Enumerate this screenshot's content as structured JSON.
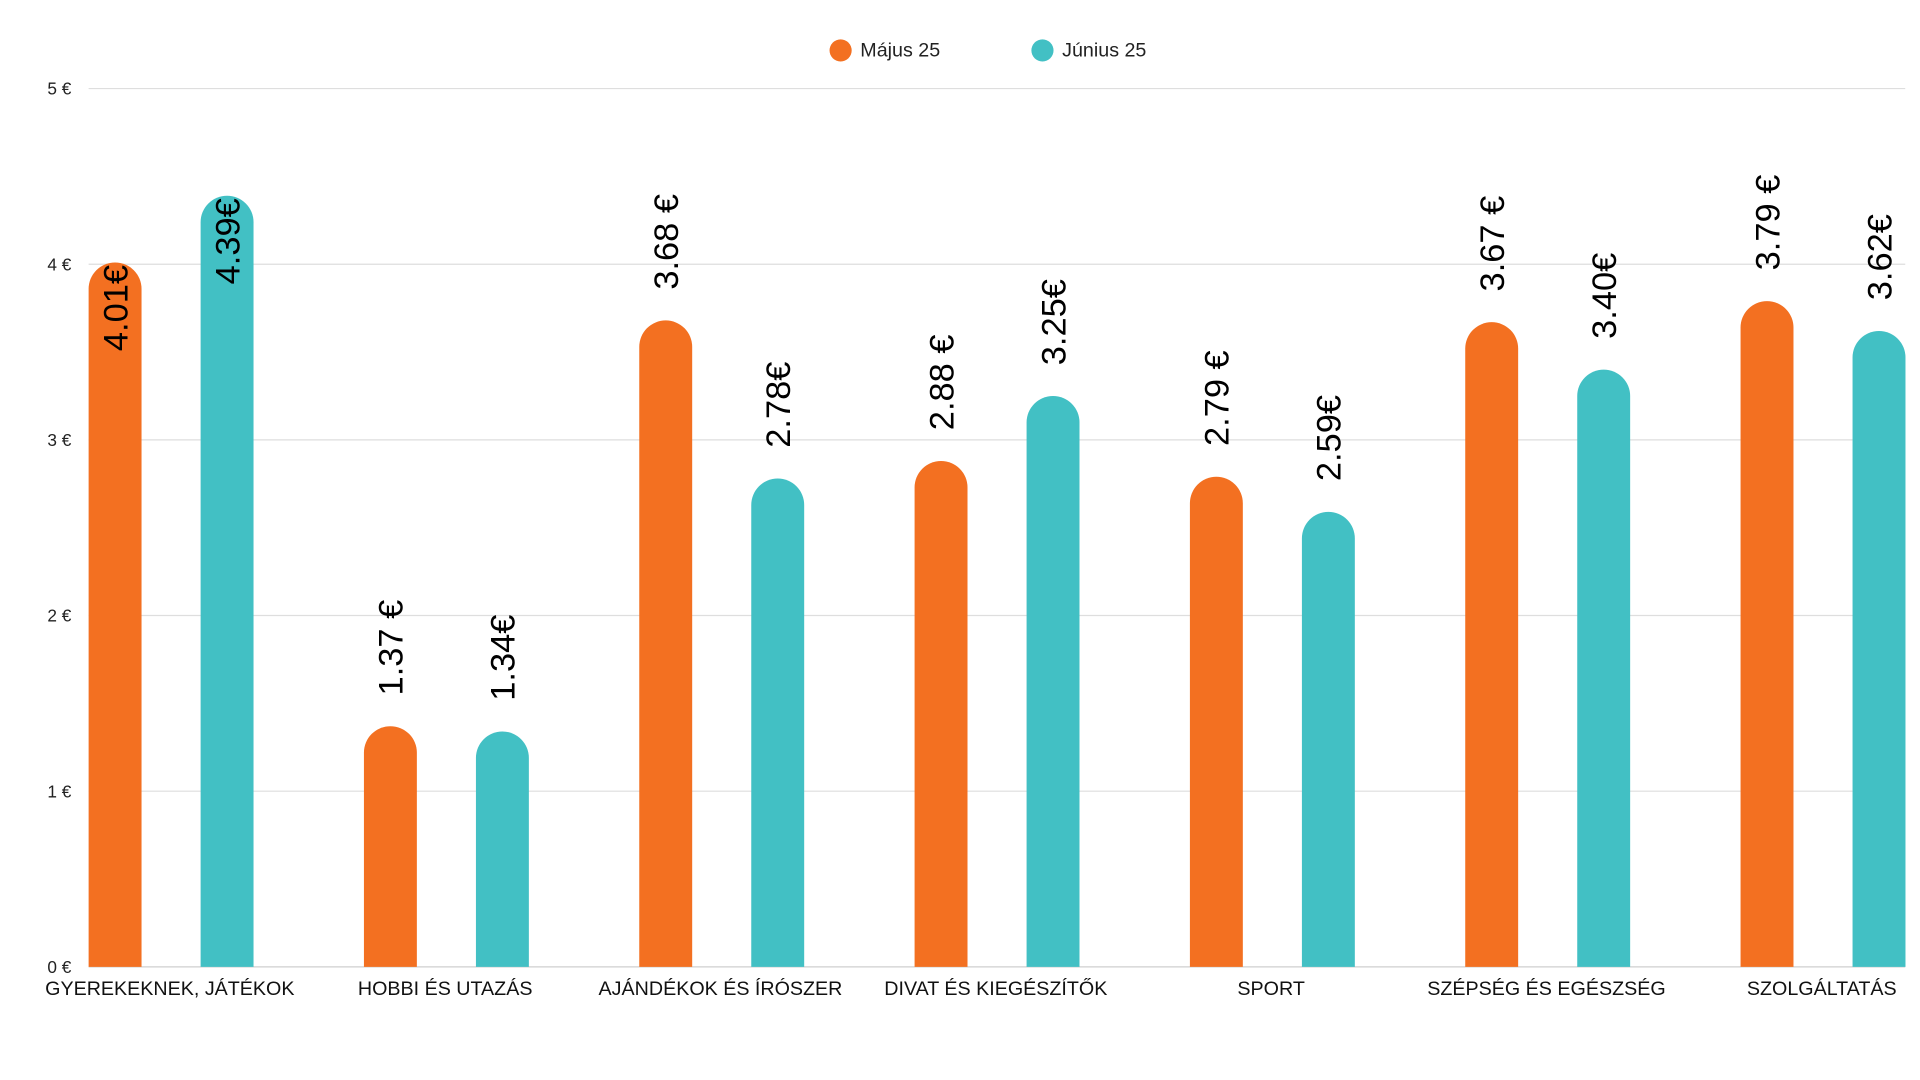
{
  "chart_data": {
    "type": "bar",
    "title": "",
    "xlabel": "",
    "ylabel": "",
    "ylim": [
      0,
      5
    ],
    "yticks": [
      "0 €",
      "1 €",
      "2 €",
      "3 €",
      "4 €",
      "5 €"
    ],
    "grid": true,
    "legend_position": "top-center",
    "categories": [
      "GYEREKEKNEK, JÁTÉKOK",
      "HOBBI ÉS UTAZÁS",
      "AJÁNDÉKOK ÉS ÍRÓSZER",
      "DIVAT ÉS KIEGÉSZÍTŐK",
      "SPORT",
      "SZÉPSÉG ÉS EGÉSZSÉG",
      "SZOLGÁLTATÁS"
    ],
    "series": [
      {
        "name": "Május 25",
        "color": "#F37021",
        "values": [
          4.01,
          1.37,
          3.68,
          2.88,
          2.79,
          3.67,
          3.79
        ],
        "labels": [
          "4.01€",
          "1.37 €",
          "3.68 €",
          "2.88 €",
          "2.79 €",
          "3.67 €",
          "3.79 €"
        ]
      },
      {
        "name": "Június 25",
        "color": "#42C0C4",
        "values": [
          4.39,
          1.34,
          2.78,
          3.25,
          2.59,
          3.4,
          3.62
        ],
        "labels": [
          "4.39€",
          "1.34€",
          "2.78€",
          "3.25€",
          "2.59€",
          "3.40€",
          "3.62€"
        ]
      }
    ]
  }
}
